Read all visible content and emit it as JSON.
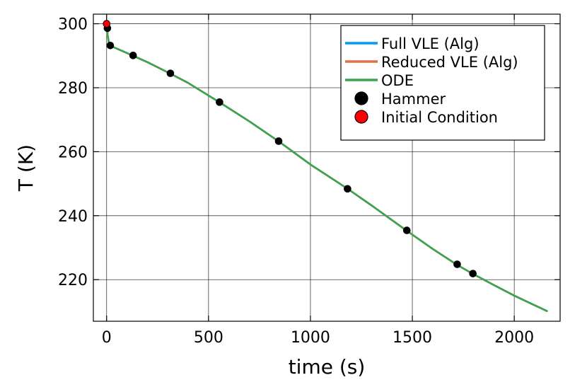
{
  "chart_data": {
    "type": "line",
    "xlabel": "time (s)",
    "ylabel": "T (K)",
    "xlim": [
      -65,
      2225
    ],
    "ylim": [
      207,
      303
    ],
    "xticks": [
      0,
      500,
      1000,
      1500,
      2000
    ],
    "xtick_labels": [
      "0",
      "500",
      "1000",
      "1500",
      "2000"
    ],
    "yticks": [
      220,
      240,
      260,
      280,
      300
    ],
    "ytick_labels": [
      "220",
      "240",
      "260",
      "280",
      "300"
    ],
    "grid": true,
    "legend_position": "top-right",
    "series": [
      {
        "name": "Full VLE (Alg)",
        "kind": "line",
        "color": "#009af9",
        "x": [
          0,
          2,
          5,
          10,
          15,
          20,
          40,
          80,
          130,
          200,
          310,
          400,
          555,
          700,
          845,
          1000,
          1185,
          1300,
          1470,
          1600,
          1720,
          1800,
          1900,
          2000,
          2100,
          2160
        ],
        "y": [
          300,
          298.5,
          296.5,
          294.5,
          293.6,
          293.2,
          292.5,
          291.4,
          290.0,
          288.0,
          284.5,
          281.5,
          275.4,
          269.5,
          263.2,
          256.0,
          248.3,
          243.2,
          235.4,
          229.6,
          224.6,
          221.7,
          218.3,
          215.0,
          212.0,
          210.2
        ]
      },
      {
        "name": "Reduced VLE (Alg)",
        "kind": "line",
        "color": "#e26f46",
        "x": [
          0,
          2,
          5,
          10,
          15,
          20,
          40,
          80,
          130,
          200,
          310,
          400,
          555,
          700,
          845,
          1000,
          1185,
          1300,
          1470,
          1600,
          1720,
          1800,
          1900,
          2000,
          2100,
          2160
        ],
        "y": [
          300,
          298.5,
          296.5,
          294.5,
          293.6,
          293.2,
          292.5,
          291.4,
          290.0,
          288.0,
          284.5,
          281.5,
          275.4,
          269.5,
          263.2,
          256.0,
          248.3,
          243.2,
          235.4,
          229.6,
          224.6,
          221.7,
          218.3,
          215.0,
          212.0,
          210.2
        ]
      },
      {
        "name": "ODE",
        "kind": "line",
        "color": "#3da44d",
        "x": [
          0,
          2,
          5,
          10,
          15,
          20,
          40,
          80,
          130,
          200,
          310,
          400,
          555,
          700,
          845,
          1000,
          1185,
          1300,
          1470,
          1600,
          1720,
          1800,
          1900,
          2000,
          2100,
          2160
        ],
        "y": [
          300,
          298.5,
          296.5,
          294.5,
          293.6,
          293.2,
          292.5,
          291.4,
          290.0,
          288.0,
          284.5,
          281.5,
          275.4,
          269.5,
          263.2,
          256.0,
          248.3,
          243.2,
          235.4,
          229.6,
          224.6,
          221.7,
          218.3,
          215.0,
          212.0,
          210.2
        ]
      },
      {
        "name": "Hammer",
        "kind": "scatter",
        "color": "#000000",
        "x": [
          4,
          18,
          130,
          313,
          554,
          844,
          1182,
          1473,
          1720,
          1797
        ],
        "y": [
          298.6,
          293.2,
          290.1,
          284.5,
          275.5,
          263.3,
          248.4,
          235.4,
          224.8,
          221.9
        ]
      },
      {
        "name": "Initial Condition",
        "kind": "scatter",
        "color": "#ff0000",
        "x": [
          0
        ],
        "y": [
          300
        ]
      }
    ]
  }
}
